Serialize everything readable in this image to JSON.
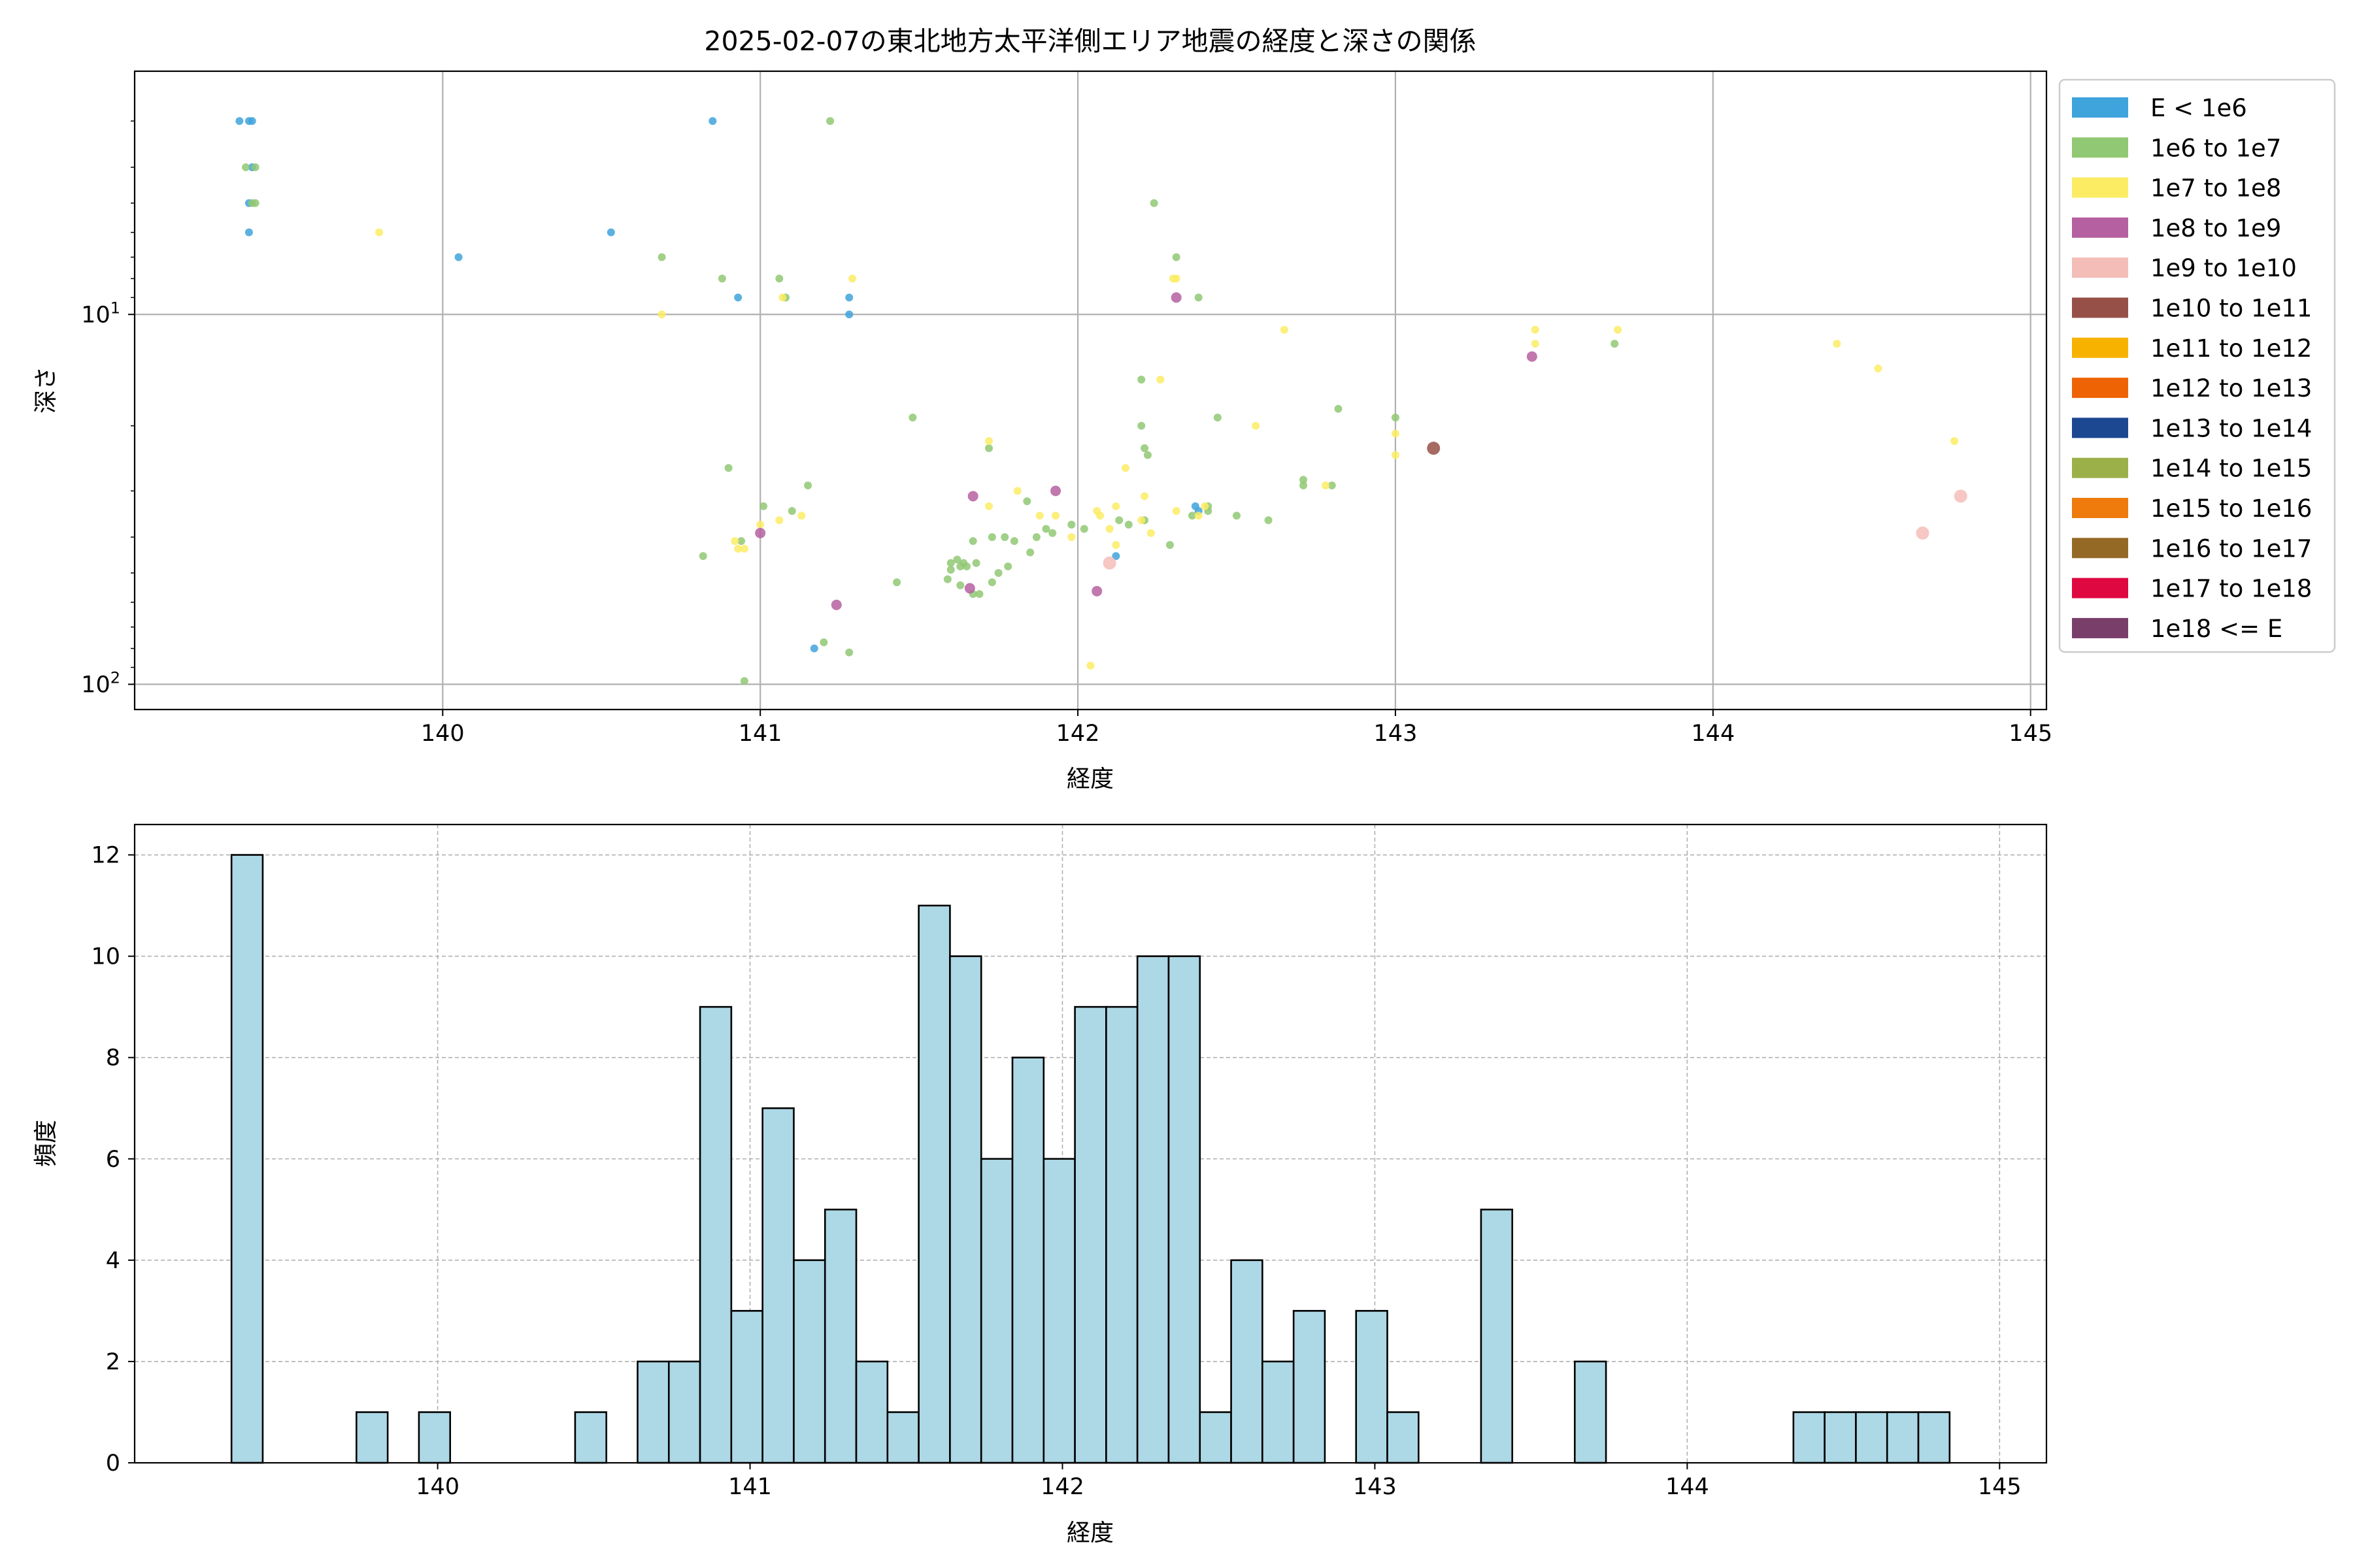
{
  "chart_data": [
    {
      "type": "scatter",
      "title": "2025-02-07の東北地方太平洋側エリア地震の経度と深さの関係",
      "xlabel": "経度",
      "ylabel": "深さ",
      "xlim": [
        139.03,
        145.05
      ],
      "ylim": [
        117,
        2.2
      ],
      "y_scale": "log",
      "y_inverted": true,
      "x_ticks": [
        "140",
        "141",
        "142",
        "143",
        "144",
        "145"
      ],
      "y_ticks": [
        "10",
        "10"
      ],
      "y_tick_sups": [
        "1",
        "2"
      ],
      "grid": true,
      "legend_placement": "outside right",
      "legend": [
        {
          "label": "E < 1e6",
          "color": "#3fa3dc"
        },
        {
          "label": "1e6 to 1e7",
          "color": "#91c873"
        },
        {
          "label": "1e7 to 1e8",
          "color": "#fbec64"
        },
        {
          "label": "1e8 to 1e9",
          "color": "#b560a0"
        },
        {
          "label": "1e9 to 1e10",
          "color": "#f4bdb8"
        },
        {
          "label": "1e10 to 1e11",
          "color": "#965048"
        },
        {
          "label": "1e11 to 1e12",
          "color": "#f7b200"
        },
        {
          "label": "1e12 to 1e13",
          "color": "#ee6405"
        },
        {
          "label": "1e13 to 1e14",
          "color": "#1c4791"
        },
        {
          "label": "1e14 to 1e15",
          "color": "#9cb04a"
        },
        {
          "label": "1e15 to 1e16",
          "color": "#ee7b0c"
        },
        {
          "label": "1e16 to 1e17",
          "color": "#946926"
        },
        {
          "label": "1e17 to 1e18",
          "color": "#df0840"
        },
        {
          "label": "1e18 <= E",
          "color": "#7a3e6b"
        }
      ],
      "series": [
        {
          "points": [
            [
              139.36,
              3
            ],
            [
              139.39,
              3
            ],
            [
              139.4,
              3
            ],
            [
              139.4,
              4
            ],
            [
              139.39,
              5
            ],
            [
              139.39,
              6
            ],
            [
              140.05,
              7
            ],
            [
              140.53,
              6
            ],
            [
              140.85,
              3
            ],
            [
              140.93,
              9
            ],
            [
              141.28,
              9
            ],
            [
              141.28,
              10
            ],
            [
              141.17,
              80
            ],
            [
              142.12,
              45
            ],
            [
              142.37,
              33
            ],
            [
              142.38,
              34
            ]
          ]
        },
        {
          "points": [
            [
              139.38,
              4
            ],
            [
              139.41,
              4
            ],
            [
              139.4,
              5
            ],
            [
              139.41,
              5
            ],
            [
              141.22,
              3
            ],
            [
              142.24,
              5
            ],
            [
              142.31,
              7
            ],
            [
              142.38,
              9
            ],
            [
              141.06,
              8
            ],
            [
              141.08,
              9
            ],
            [
              140.88,
              8
            ],
            [
              140.69,
              7
            ],
            [
              142.2,
              15
            ],
            [
              141.48,
              19
            ],
            [
              142.2,
              20
            ],
            [
              142.44,
              19
            ],
            [
              142.82,
              18
            ],
            [
              143.0,
              19
            ],
            [
              143.69,
              12
            ],
            [
              142.21,
              23
            ],
            [
              142.22,
              24
            ],
            [
              141.72,
              23
            ],
            [
              140.9,
              26
            ],
            [
              141.15,
              29
            ],
            [
              141.01,
              33
            ],
            [
              141.1,
              34
            ],
            [
              140.94,
              41
            ],
            [
              140.82,
              45
            ],
            [
              141.84,
              32
            ],
            [
              141.9,
              38
            ],
            [
              141.87,
              40
            ],
            [
              141.98,
              37
            ],
            [
              142.02,
              38
            ],
            [
              142.13,
              36
            ],
            [
              142.16,
              37
            ],
            [
              142.21,
              36
            ],
            [
              142.36,
              35
            ],
            [
              142.41,
              33
            ],
            [
              142.41,
              34
            ],
            [
              142.29,
              42
            ],
            [
              142.5,
              35
            ],
            [
              142.6,
              36
            ],
            [
              142.71,
              28
            ],
            [
              142.71,
              29
            ],
            [
              142.8,
              29
            ],
            [
              141.6,
              47
            ],
            [
              141.62,
              46
            ],
            [
              141.64,
              47
            ],
            [
              141.6,
              49
            ],
            [
              141.63,
              48
            ],
            [
              141.65,
              48
            ],
            [
              141.68,
              47
            ],
            [
              141.73,
              40
            ],
            [
              141.67,
              41
            ],
            [
              141.77,
              40
            ],
            [
              141.8,
              41
            ],
            [
              141.85,
              44
            ],
            [
              141.92,
              39
            ],
            [
              141.73,
              53
            ],
            [
              141.59,
              52
            ],
            [
              141.63,
              54
            ],
            [
              141.67,
              57
            ],
            [
              141.69,
              57
            ],
            [
              141.43,
              53
            ],
            [
              141.75,
              50
            ],
            [
              141.78,
              48
            ],
            [
              141.2,
              77
            ],
            [
              141.28,
              82
            ],
            [
              140.95,
              98
            ]
          ]
        },
        {
          "points": [
            [
              139.8,
              6
            ],
            [
              140.69,
              10
            ],
            [
              141.07,
              9
            ],
            [
              141.13,
              35
            ],
            [
              141.29,
              8
            ],
            [
              142.3,
              8
            ],
            [
              142.31,
              8
            ],
            [
              142.65,
              11
            ],
            [
              143.44,
              11
            ],
            [
              143.44,
              12
            ],
            [
              143.7,
              11
            ],
            [
              144.39,
              12
            ],
            [
              144.52,
              14
            ],
            [
              144.76,
              22
            ],
            [
              143.0,
              21
            ],
            [
              143.0,
              24
            ],
            [
              142.78,
              29
            ],
            [
              142.4,
              33
            ],
            [
              142.56,
              20
            ],
            [
              142.26,
              15
            ],
            [
              142.15,
              26
            ],
            [
              142.21,
              31
            ],
            [
              142.12,
              33
            ],
            [
              142.2,
              36
            ],
            [
              142.31,
              34
            ],
            [
              142.38,
              35
            ],
            [
              142.06,
              34
            ],
            [
              142.1,
              38
            ],
            [
              142.12,
              42
            ],
            [
              142.07,
              35
            ],
            [
              141.98,
              40
            ],
            [
              141.93,
              35
            ],
            [
              141.88,
              35
            ],
            [
              141.81,
              30
            ],
            [
              141.72,
              22
            ],
            [
              141.72,
              33
            ],
            [
              141.06,
              36
            ],
            [
              140.93,
              43
            ],
            [
              140.95,
              43
            ],
            [
              140.92,
              41
            ],
            [
              142.04,
              89
            ],
            [
              141.0,
              37
            ],
            [
              142.23,
              39
            ]
          ]
        },
        {
          "points": [
            [
              142.31,
              9
            ],
            [
              143.43,
              13
            ],
            [
              141.67,
              31
            ],
            [
              141.93,
              30
            ],
            [
              141.0,
              39
            ],
            [
              141.24,
              61
            ],
            [
              141.66,
              55
            ],
            [
              142.06,
              56
            ]
          ]
        },
        {
          "points": [
            [
              142.1,
              47
            ],
            [
              144.66,
              39
            ],
            [
              144.78,
              31
            ]
          ]
        },
        {
          "points": [
            [
              143.12,
              23
            ]
          ]
        }
      ]
    },
    {
      "type": "bar",
      "xlabel": "経度",
      "ylabel": "頻度",
      "xlim": [
        139.03,
        145.15
      ],
      "ylim": [
        0,
        12.6
      ],
      "x_ticks": [
        "140",
        "141",
        "142",
        "143",
        "144",
        "145"
      ],
      "y_ticks": [
        "0",
        "2",
        "4",
        "6",
        "8",
        "10",
        "12"
      ],
      "grid": true,
      "bar_color": "#add8e6",
      "edge_color": "#000000",
      "bin_start": 139.34,
      "bin_width": 0.1,
      "values": [
        12,
        0,
        0,
        0,
        1,
        0,
        1,
        0,
        0,
        0,
        0,
        1,
        0,
        2,
        2,
        9,
        3,
        7,
        4,
        5,
        2,
        1,
        11,
        10,
        6,
        8,
        6,
        9,
        9,
        10,
        10,
        1,
        4,
        2,
        3,
        0,
        3,
        1,
        0,
        0,
        5,
        0,
        0,
        2,
        0,
        0,
        0,
        0,
        0,
        0,
        1,
        1,
        1,
        1,
        1
      ]
    }
  ]
}
